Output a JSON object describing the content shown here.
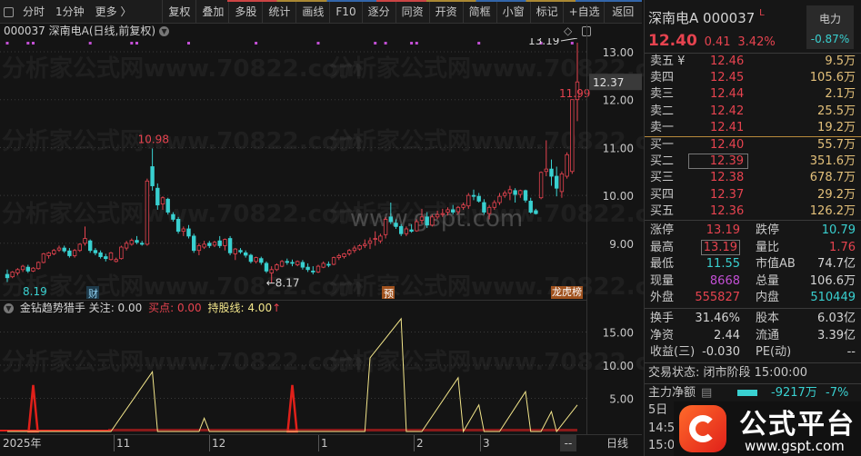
{
  "toolbar": {
    "left_items": [
      "分时",
      "1分钟",
      "更多 〉"
    ],
    "buttons": [
      "复权",
      "叠加",
      "多股",
      "统计",
      "画线",
      "F10",
      "逐分",
      "同资",
      "开资",
      "简框",
      "小窗",
      "标记",
      "+自选",
      "返回"
    ]
  },
  "title": "000037 深南电A(日线,前复权)",
  "watermarks": {
    "site1": "分析家公式网www.70822.com",
    "site2": "www.gspt.com",
    "logo_text": "公式平台",
    "logo_url": "www.gspt.com"
  },
  "colors": {
    "up": "#e6434f",
    "down": "#39d0d0",
    "yellow": "#f2e58a",
    "purple": "#c24fd4",
    "background": "#141414"
  },
  "main_chart": {
    "price_labels": [
      "13.00",
      "12.00",
      "11.00",
      "10.00",
      "9.00"
    ],
    "current_price_tag": "12.37",
    "annotations": {
      "high_mid": "10.98",
      "low_left": "8.19",
      "low_mid": "←8.17",
      "high_right": "13.19",
      "last_low": "11.99"
    },
    "markers": {
      "cai": "财",
      "yu": "预",
      "bang": "龙虎榜"
    }
  },
  "chart_data": [
    {
      "type": "candlestick",
      "ylim": [
        7.9,
        13.3
      ],
      "yticks": [
        9,
        10,
        11,
        12,
        13
      ],
      "grid": true,
      "ohlc": [
        [
          8.35,
          8.45,
          8.19,
          8.28
        ],
        [
          8.3,
          8.42,
          8.27,
          8.4
        ],
        [
          8.38,
          8.48,
          8.33,
          8.45
        ],
        [
          8.45,
          8.55,
          8.4,
          8.52
        ],
        [
          8.5,
          8.55,
          8.38,
          8.42
        ],
        [
          8.42,
          8.5,
          8.4,
          8.48
        ],
        [
          8.47,
          8.62,
          8.45,
          8.6
        ],
        [
          8.6,
          8.8,
          8.58,
          8.78
        ],
        [
          8.74,
          8.82,
          8.68,
          8.8
        ],
        [
          8.78,
          8.88,
          8.75,
          8.85
        ],
        [
          8.86,
          8.95,
          8.82,
          8.9
        ],
        [
          8.9,
          8.95,
          8.8,
          8.84
        ],
        [
          8.84,
          8.9,
          8.7,
          8.74
        ],
        [
          8.74,
          8.88,
          8.7,
          8.85
        ],
        [
          8.85,
          9.0,
          8.82,
          8.98
        ],
        [
          9.0,
          9.35,
          8.95,
          9.1
        ],
        [
          9.05,
          9.08,
          8.8,
          8.85
        ],
        [
          8.85,
          8.9,
          8.75,
          8.8
        ],
        [
          8.8,
          8.85,
          8.68,
          8.72
        ],
        [
          8.72,
          8.78,
          8.62,
          8.68
        ],
        [
          8.66,
          8.82,
          8.64,
          8.8
        ],
        [
          8.62,
          8.7,
          8.6,
          8.66
        ],
        [
          8.68,
          8.95,
          8.66,
          8.92
        ],
        [
          8.9,
          9.05,
          8.85,
          9.0
        ],
        [
          8.98,
          9.1,
          8.95,
          9.06
        ],
        [
          9.06,
          9.15,
          8.98,
          9.02
        ],
        [
          9.0,
          9.05,
          8.95,
          8.98
        ],
        [
          8.98,
          10.35,
          8.95,
          10.3
        ],
        [
          10.6,
          10.98,
          10.1,
          10.2
        ],
        [
          10.15,
          10.25,
          9.7,
          9.8
        ],
        [
          9.82,
          9.98,
          9.7,
          9.95
        ],
        [
          9.92,
          9.95,
          9.6,
          9.65
        ],
        [
          9.6,
          9.65,
          9.45,
          9.5
        ],
        [
          9.5,
          9.55,
          9.2,
          9.25
        ],
        [
          9.25,
          9.35,
          9.15,
          9.3
        ],
        [
          9.3,
          9.38,
          9.1,
          9.15
        ],
        [
          9.15,
          9.2,
          8.8,
          8.85
        ],
        [
          8.85,
          9.0,
          8.75,
          8.95
        ],
        [
          8.92,
          9.05,
          8.88,
          8.98
        ],
        [
          9.0,
          9.05,
          8.9,
          8.95
        ],
        [
          8.96,
          9.05,
          8.92,
          9.02
        ],
        [
          9.05,
          9.15,
          8.9,
          8.95
        ],
        [
          8.95,
          9.1,
          8.85,
          9.08
        ],
        [
          9.1,
          9.15,
          8.75,
          8.8
        ],
        [
          8.78,
          8.9,
          8.65,
          8.88
        ],
        [
          8.85,
          8.9,
          8.78,
          8.82
        ],
        [
          8.8,
          8.85,
          8.7,
          8.75
        ],
        [
          8.75,
          8.78,
          8.58,
          8.62
        ],
        [
          8.62,
          8.72,
          8.58,
          8.7
        ],
        [
          8.68,
          8.72,
          8.55,
          8.6
        ],
        [
          8.58,
          8.62,
          8.38,
          8.42
        ],
        [
          8.38,
          8.52,
          8.17,
          8.45
        ],
        [
          8.45,
          8.58,
          8.42,
          8.55
        ],
        [
          8.52,
          8.65,
          8.5,
          8.62
        ],
        [
          8.62,
          8.68,
          8.55,
          8.6
        ],
        [
          8.6,
          8.66,
          8.52,
          8.58
        ],
        [
          8.55,
          8.64,
          8.52,
          8.62
        ],
        [
          8.6,
          8.65,
          8.45,
          8.5
        ],
        [
          8.5,
          8.58,
          8.4,
          8.45
        ],
        [
          8.42,
          8.52,
          8.35,
          8.4
        ],
        [
          8.4,
          8.55,
          8.38,
          8.52
        ],
        [
          8.5,
          8.62,
          8.48,
          8.58
        ],
        [
          8.56,
          8.62,
          8.5,
          8.55
        ],
        [
          8.56,
          8.72,
          8.54,
          8.7
        ],
        [
          8.7,
          8.78,
          8.65,
          8.74
        ],
        [
          8.72,
          8.8,
          8.68,
          8.78
        ],
        [
          8.78,
          8.88,
          8.74,
          8.85
        ],
        [
          8.85,
          8.95,
          8.8,
          8.9
        ],
        [
          8.88,
          8.98,
          8.85,
          8.95
        ],
        [
          8.95,
          9.08,
          8.9,
          8.98
        ],
        [
          9.0,
          9.12,
          8.88,
          9.05
        ],
        [
          9.08,
          9.25,
          8.95,
          9.1
        ],
        [
          9.05,
          9.2,
          9.0,
          9.15
        ],
        [
          9.18,
          9.55,
          9.1,
          9.5
        ],
        [
          9.55,
          9.85,
          9.4,
          9.45
        ],
        [
          9.42,
          9.5,
          9.3,
          9.35
        ],
        [
          9.35,
          9.4,
          9.15,
          9.2
        ],
        [
          9.2,
          9.35,
          9.15,
          9.3
        ],
        [
          9.28,
          9.4,
          9.22,
          9.25
        ],
        [
          9.26,
          9.5,
          9.24,
          9.45
        ],
        [
          9.48,
          9.72,
          9.4,
          9.55
        ],
        [
          9.55,
          9.65,
          9.32,
          9.38
        ],
        [
          9.38,
          9.6,
          9.35,
          9.55
        ],
        [
          9.55,
          9.68,
          9.5,
          9.6
        ],
        [
          9.6,
          9.72,
          9.55,
          9.62
        ],
        [
          9.65,
          9.75,
          9.58,
          9.7
        ],
        [
          9.7,
          9.8,
          9.6,
          9.65
        ],
        [
          9.66,
          9.78,
          9.6,
          9.75
        ],
        [
          9.75,
          9.85,
          9.7,
          9.8
        ],
        [
          9.78,
          10.05,
          9.72,
          10.0
        ],
        [
          10.0,
          10.12,
          9.9,
          9.98
        ],
        [
          9.98,
          10.05,
          9.85,
          9.88
        ],
        [
          9.85,
          9.92,
          9.6,
          9.65
        ],
        [
          9.62,
          9.8,
          9.5,
          9.75
        ],
        [
          9.75,
          9.9,
          9.7,
          9.85
        ],
        [
          9.85,
          10.05,
          9.8,
          9.98
        ],
        [
          10.0,
          10.1,
          9.95,
          10.05
        ],
        [
          10.05,
          10.2,
          9.9,
          10.12
        ],
        [
          10.1,
          10.15,
          9.85,
          10.02
        ],
        [
          10.02,
          10.12,
          9.95,
          10.1
        ],
        [
          10.1,
          10.12,
          9.85,
          9.9
        ],
        [
          9.88,
          9.95,
          9.62,
          9.65
        ],
        [
          9.68,
          9.72,
          9.6,
          9.62
        ],
        [
          9.95,
          10.5,
          9.92,
          10.48
        ],
        [
          10.5,
          11.15,
          10.4,
          10.55
        ],
        [
          10.55,
          10.75,
          10.2,
          10.4
        ],
        [
          10.4,
          10.6,
          9.98,
          10.15
        ],
        [
          10.08,
          10.5,
          9.95,
          10.45
        ],
        [
          10.4,
          10.9,
          10.35,
          10.85
        ],
        [
          10.5,
          12.0,
          10.45,
          12.0
        ],
        [
          12.0,
          13.19,
          11.55,
          12.37
        ]
      ],
      "signal_dots": [
        0,
        4,
        5,
        16,
        24,
        25,
        35,
        48,
        60,
        71,
        73,
        78,
        79,
        91,
        103,
        109
      ],
      "x_labels": [
        "2025年",
        "11",
        "12",
        "1",
        "2",
        "3",
        "--"
      ],
      "period_label": "日线"
    },
    {
      "type": "line",
      "title": "金钻趋势猎手",
      "ylim": [
        0,
        18
      ],
      "yticks": [
        "15.00",
        "10.00",
        "5.00"
      ],
      "legend": [
        {
          "name": "关注",
          "value": "0.00"
        },
        {
          "name": "买点",
          "value": "0.00"
        },
        {
          "name": "持股线",
          "value": "4.00",
          "arrow": "↑"
        }
      ],
      "holding_line": [
        [
          0,
          0
        ],
        [
          20,
          0
        ],
        [
          28,
          9
        ],
        [
          29,
          0
        ],
        [
          37,
          0
        ],
        [
          38,
          2
        ],
        [
          39,
          0
        ],
        [
          69,
          0
        ],
        [
          70,
          11.1
        ],
        [
          76,
          17
        ],
        [
          77,
          0
        ],
        [
          80,
          0
        ],
        [
          87,
          8.1
        ],
        [
          88,
          0
        ],
        [
          91,
          4
        ],
        [
          92,
          0
        ],
        [
          95,
          0
        ],
        [
          100,
          6
        ],
        [
          101,
          0
        ],
        [
          103,
          0
        ],
        [
          105,
          3
        ],
        [
          106,
          0
        ],
        [
          110,
          4
        ]
      ],
      "buy_spikes": [
        [
          5,
          7
        ],
        [
          55,
          7
        ]
      ]
    }
  ],
  "quote": {
    "name": "深南电A",
    "code": "000037",
    "flag": "L",
    "sector": "电力",
    "sector_change": "-0.87%",
    "price": "12.40",
    "change": "0.41",
    "change_pct": "3.42%",
    "asks": [
      {
        "label": "卖五 ¥",
        "price": "12.46",
        "vol": "9.5万"
      },
      {
        "label": "卖四",
        "price": "12.45",
        "vol": "105.6万"
      },
      {
        "label": "卖三",
        "price": "12.44",
        "vol": "2.1万"
      },
      {
        "label": "卖二",
        "price": "12.42",
        "vol": "25.5万"
      },
      {
        "label": "卖一",
        "price": "12.41",
        "vol": "19.2万"
      }
    ],
    "bids": [
      {
        "label": "买一",
        "price": "12.40",
        "vol": "55.7万"
      },
      {
        "label": "买二",
        "price": "12.39",
        "vol": "351.6万"
      },
      {
        "label": "买三",
        "price": "12.38",
        "vol": "678.7万"
      },
      {
        "label": "买四",
        "price": "12.37",
        "vol": "29.2万"
      },
      {
        "label": "买五",
        "price": "12.36",
        "vol": "126.2万"
      }
    ],
    "stats": [
      {
        "l1": "涨停",
        "v1": "13.19",
        "l2": "跌停",
        "v2": "10.79"
      },
      {
        "l1": "最高",
        "v1": "13.19",
        "l2": "量比",
        "v2": "1.76"
      },
      {
        "l1": "最低",
        "v1": "11.55",
        "l2": "市值AB",
        "v2": "74.7亿"
      },
      {
        "l1": "现量",
        "v1": "8668",
        "l2": "总量",
        "v2": "106.6万"
      },
      {
        "l1": "外盘",
        "v1": "555827",
        "l2": "内盘",
        "v2": "510449"
      }
    ],
    "fundamentals": [
      {
        "l1": "换手",
        "v1": "31.46%",
        "l2": "股本",
        "v2": "6.03亿"
      },
      {
        "l1": "净资",
        "v1": "2.44",
        "l2": "流通",
        "v2": "3.39亿"
      },
      {
        "l1": "收益(三)",
        "v1": "-0.030",
        "l2": "PE(动)",
        "v2": "--"
      }
    ],
    "trade_status": "交易状态: 闭市阶段 15:00:00",
    "main_flow": {
      "label": "主力净额",
      "value": "-9217万",
      "pct": "-7%"
    },
    "five_day": "5日",
    "ticks": [
      "14:5",
      "15:0"
    ]
  }
}
